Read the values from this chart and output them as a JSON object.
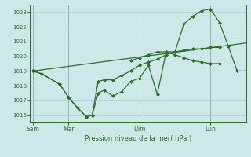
{
  "bg_color": "#cce8e8",
  "grid_color": "#aacccc",
  "line_color": "#2d6e2d",
  "marker_color": "#2d6e2d",
  "xlabel": "Pression niveau de la mer( hPa )",
  "ylim": [
    1015.5,
    1023.5
  ],
  "yticks": [
    1016,
    1017,
    1018,
    1019,
    1020,
    1021,
    1022,
    1023
  ],
  "xtick_labels": [
    "Sam",
    "Mar",
    "Dim",
    "Lun"
  ],
  "xtick_positions": [
    0,
    24,
    72,
    120
  ],
  "vline_positions": [
    0,
    24,
    72,
    120
  ],
  "xlim": [
    -2,
    144
  ],
  "series1": {
    "x": [
      0,
      6,
      18,
      24,
      30,
      36,
      40,
      44,
      48,
      54,
      60,
      66,
      72,
      78,
      84,
      90,
      96,
      102,
      108,
      114,
      120,
      126
    ],
    "y": [
      1019.0,
      1018.8,
      1018.1,
      1017.2,
      1016.5,
      1015.9,
      1016.0,
      1017.5,
      1017.7,
      1017.3,
      1017.6,
      1018.3,
      1018.5,
      1019.4,
      1017.4,
      1020.3,
      1020.1,
      1019.9,
      1019.7,
      1019.6,
      1019.5,
      1019.5
    ]
  },
  "series2": {
    "x": [
      0,
      6,
      18,
      24,
      30,
      36,
      40,
      44,
      48,
      54,
      60,
      66,
      72,
      78,
      84,
      90,
      96,
      102,
      108,
      114,
      120,
      126
    ],
    "y": [
      1019.0,
      1018.8,
      1018.1,
      1017.2,
      1016.5,
      1015.9,
      1016.0,
      1018.3,
      1018.4,
      1018.4,
      1018.7,
      1019.0,
      1019.4,
      1019.6,
      1019.8,
      1020.1,
      1020.3,
      1020.4,
      1020.5,
      1020.5,
      1020.6,
      1020.6
    ]
  },
  "series3": {
    "x": [
      0,
      144
    ],
    "y": [
      1019.0,
      1020.9
    ]
  },
  "series4": {
    "x": [
      66,
      72,
      78,
      84,
      90,
      96,
      102,
      108,
      114,
      120,
      126,
      132,
      138,
      144
    ],
    "y": [
      1019.7,
      1019.9,
      1020.1,
      1020.3,
      1020.3,
      1020.3,
      1022.2,
      1022.7,
      1023.1,
      1023.2,
      1022.3,
      1020.7,
      1019.0,
      1019.0
    ]
  }
}
